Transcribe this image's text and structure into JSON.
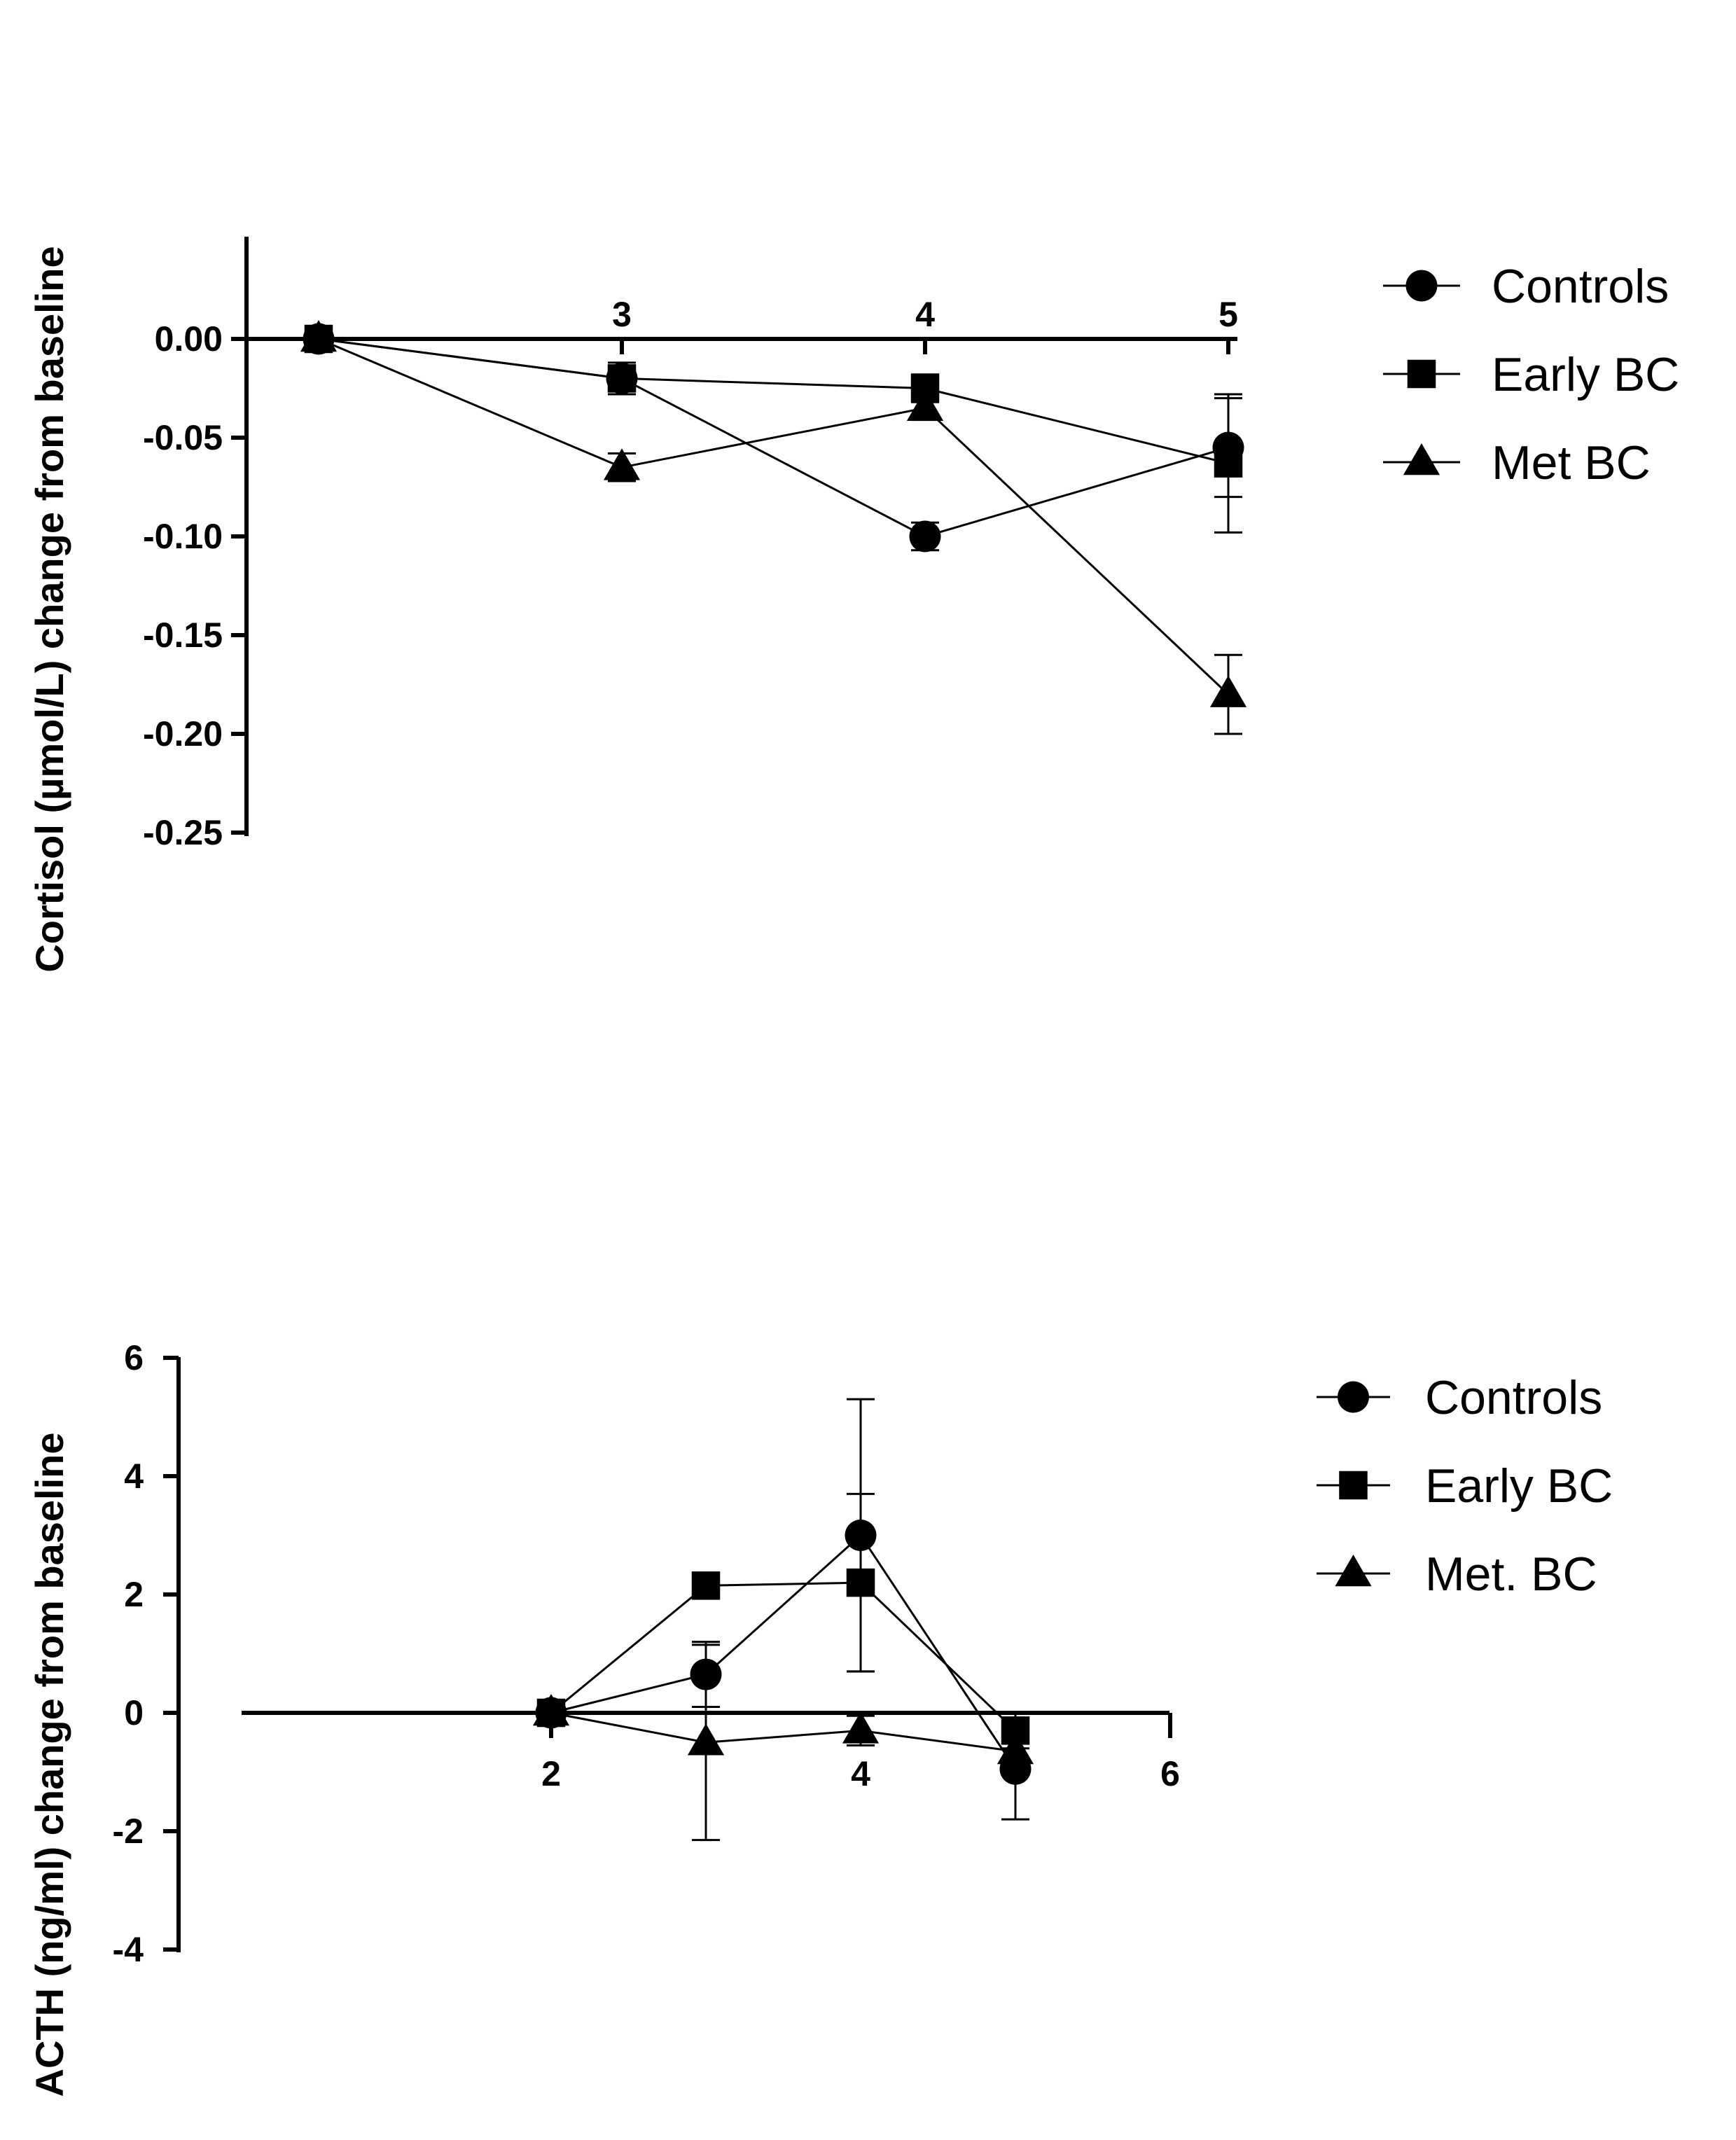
{
  "chart_data": [
    {
      "type": "line",
      "ylabel": "Cortisol (µmol/L) change from baseline",
      "xlabel": "",
      "xlim": [
        2,
        5
      ],
      "ylim": [
        -0.25,
        0.05
      ],
      "x_ticks": [
        3,
        4,
        5
      ],
      "y_ticks": [
        0,
        -0.05,
        -0.1,
        -0.15,
        -0.2,
        -0.25
      ],
      "y_tick_labels": [
        "0.00",
        "-0.05",
        "-0.10",
        "-0.15",
        "-0.20",
        "-0.25"
      ],
      "legend_position": "right",
      "series": [
        {
          "name": "Controls",
          "marker": "circle",
          "x": [
            2,
            3,
            4,
            5
          ],
          "y": [
            0,
            -0.02,
            -0.1,
            -0.055
          ],
          "err": [
            0,
            0.005,
            0.007,
            0.025
          ]
        },
        {
          "name": "Early BC",
          "marker": "square",
          "x": [
            2,
            3,
            4,
            5
          ],
          "y": [
            0,
            -0.02,
            -0.025,
            -0.063
          ],
          "err": [
            0,
            0.008,
            0.007,
            0.035
          ]
        },
        {
          "name": "Met BC",
          "marker": "triangle",
          "x": [
            2,
            3,
            4,
            5
          ],
          "y": [
            0,
            -0.065,
            -0.035,
            -0.18
          ],
          "err": [
            0,
            0.007,
            0.006,
            0.02
          ]
        }
      ]
    },
    {
      "type": "line",
      "ylabel": "ACTH (ng/ml) change from baseline",
      "xlabel": "",
      "xlim": [
        0,
        6
      ],
      "ylim": [
        -4,
        6
      ],
      "x_ticks": [
        2,
        4,
        6
      ],
      "y_ticks": [
        6,
        4,
        2,
        0,
        -2,
        -4
      ],
      "y_tick_labels": [
        "6",
        "4",
        "2",
        "0",
        "-2",
        "-4"
      ],
      "legend_position": "right",
      "series": [
        {
          "name": "Controls",
          "marker": "circle",
          "x": [
            2,
            3,
            4,
            5
          ],
          "y": [
            0,
            0.65,
            3.0,
            -0.95
          ],
          "err": [
            0,
            0.55,
            2.3,
            0.85
          ]
        },
        {
          "name": "Early BC",
          "marker": "square",
          "x": [
            2,
            3,
            4,
            5
          ],
          "y": [
            0,
            2.15,
            2.2,
            -0.3
          ],
          "err": [
            0,
            0,
            1.5,
            0.3
          ]
        },
        {
          "name": "Met. BC",
          "marker": "triangle",
          "x": [
            2,
            3,
            4,
            5
          ],
          "y": [
            0,
            -0.5,
            -0.3,
            -0.65
          ],
          "err": [
            0,
            1.65,
            0.25,
            0.3
          ]
        }
      ]
    }
  ]
}
